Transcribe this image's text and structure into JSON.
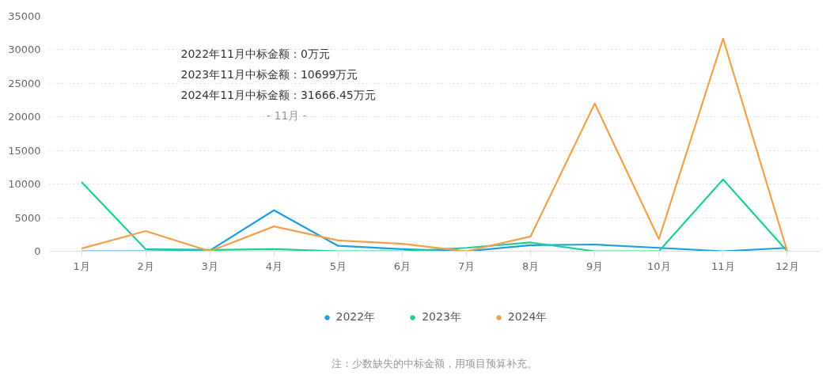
{
  "chart_data": {
    "type": "line",
    "categories": [
      "1月",
      "2月",
      "3月",
      "4月",
      "5月",
      "6月",
      "7月",
      "8月",
      "9月",
      "10月",
      "11月",
      "12月"
    ],
    "series": [
      {
        "name": "2022年",
        "color": "#1a9fe3",
        "values": [
          0,
          0,
          100,
          6100,
          800,
          300,
          0,
          900,
          1000,
          500,
          0,
          500
        ]
      },
      {
        "name": "2023年",
        "color": "#1dcf93",
        "values": [
          10300,
          300,
          200,
          300,
          0,
          0,
          500,
          1300,
          0,
          0,
          10699,
          0
        ]
      },
      {
        "name": "2024年",
        "color": "#f4a04a",
        "values": [
          400,
          3000,
          0,
          3700,
          1600,
          1100,
          0,
          2200,
          22000,
          1800,
          31666.45,
          0
        ]
      }
    ],
    "ylim": [
      0,
      35000
    ],
    "yticks": [
      0,
      5000,
      10000,
      15000,
      20000,
      25000,
      30000,
      35000
    ],
    "grid": "y",
    "legend": "bottom",
    "marker": "none",
    "line_style": "solid",
    "annotations": [
      "2022年11月中标金额：0万元",
      "2023年11月中标金额：10699万元",
      "2024年11月中标金额：31666.45万元",
      "- 11月 -",
      "注：少数缺失的中标金额，用项目预算补充。"
    ]
  }
}
